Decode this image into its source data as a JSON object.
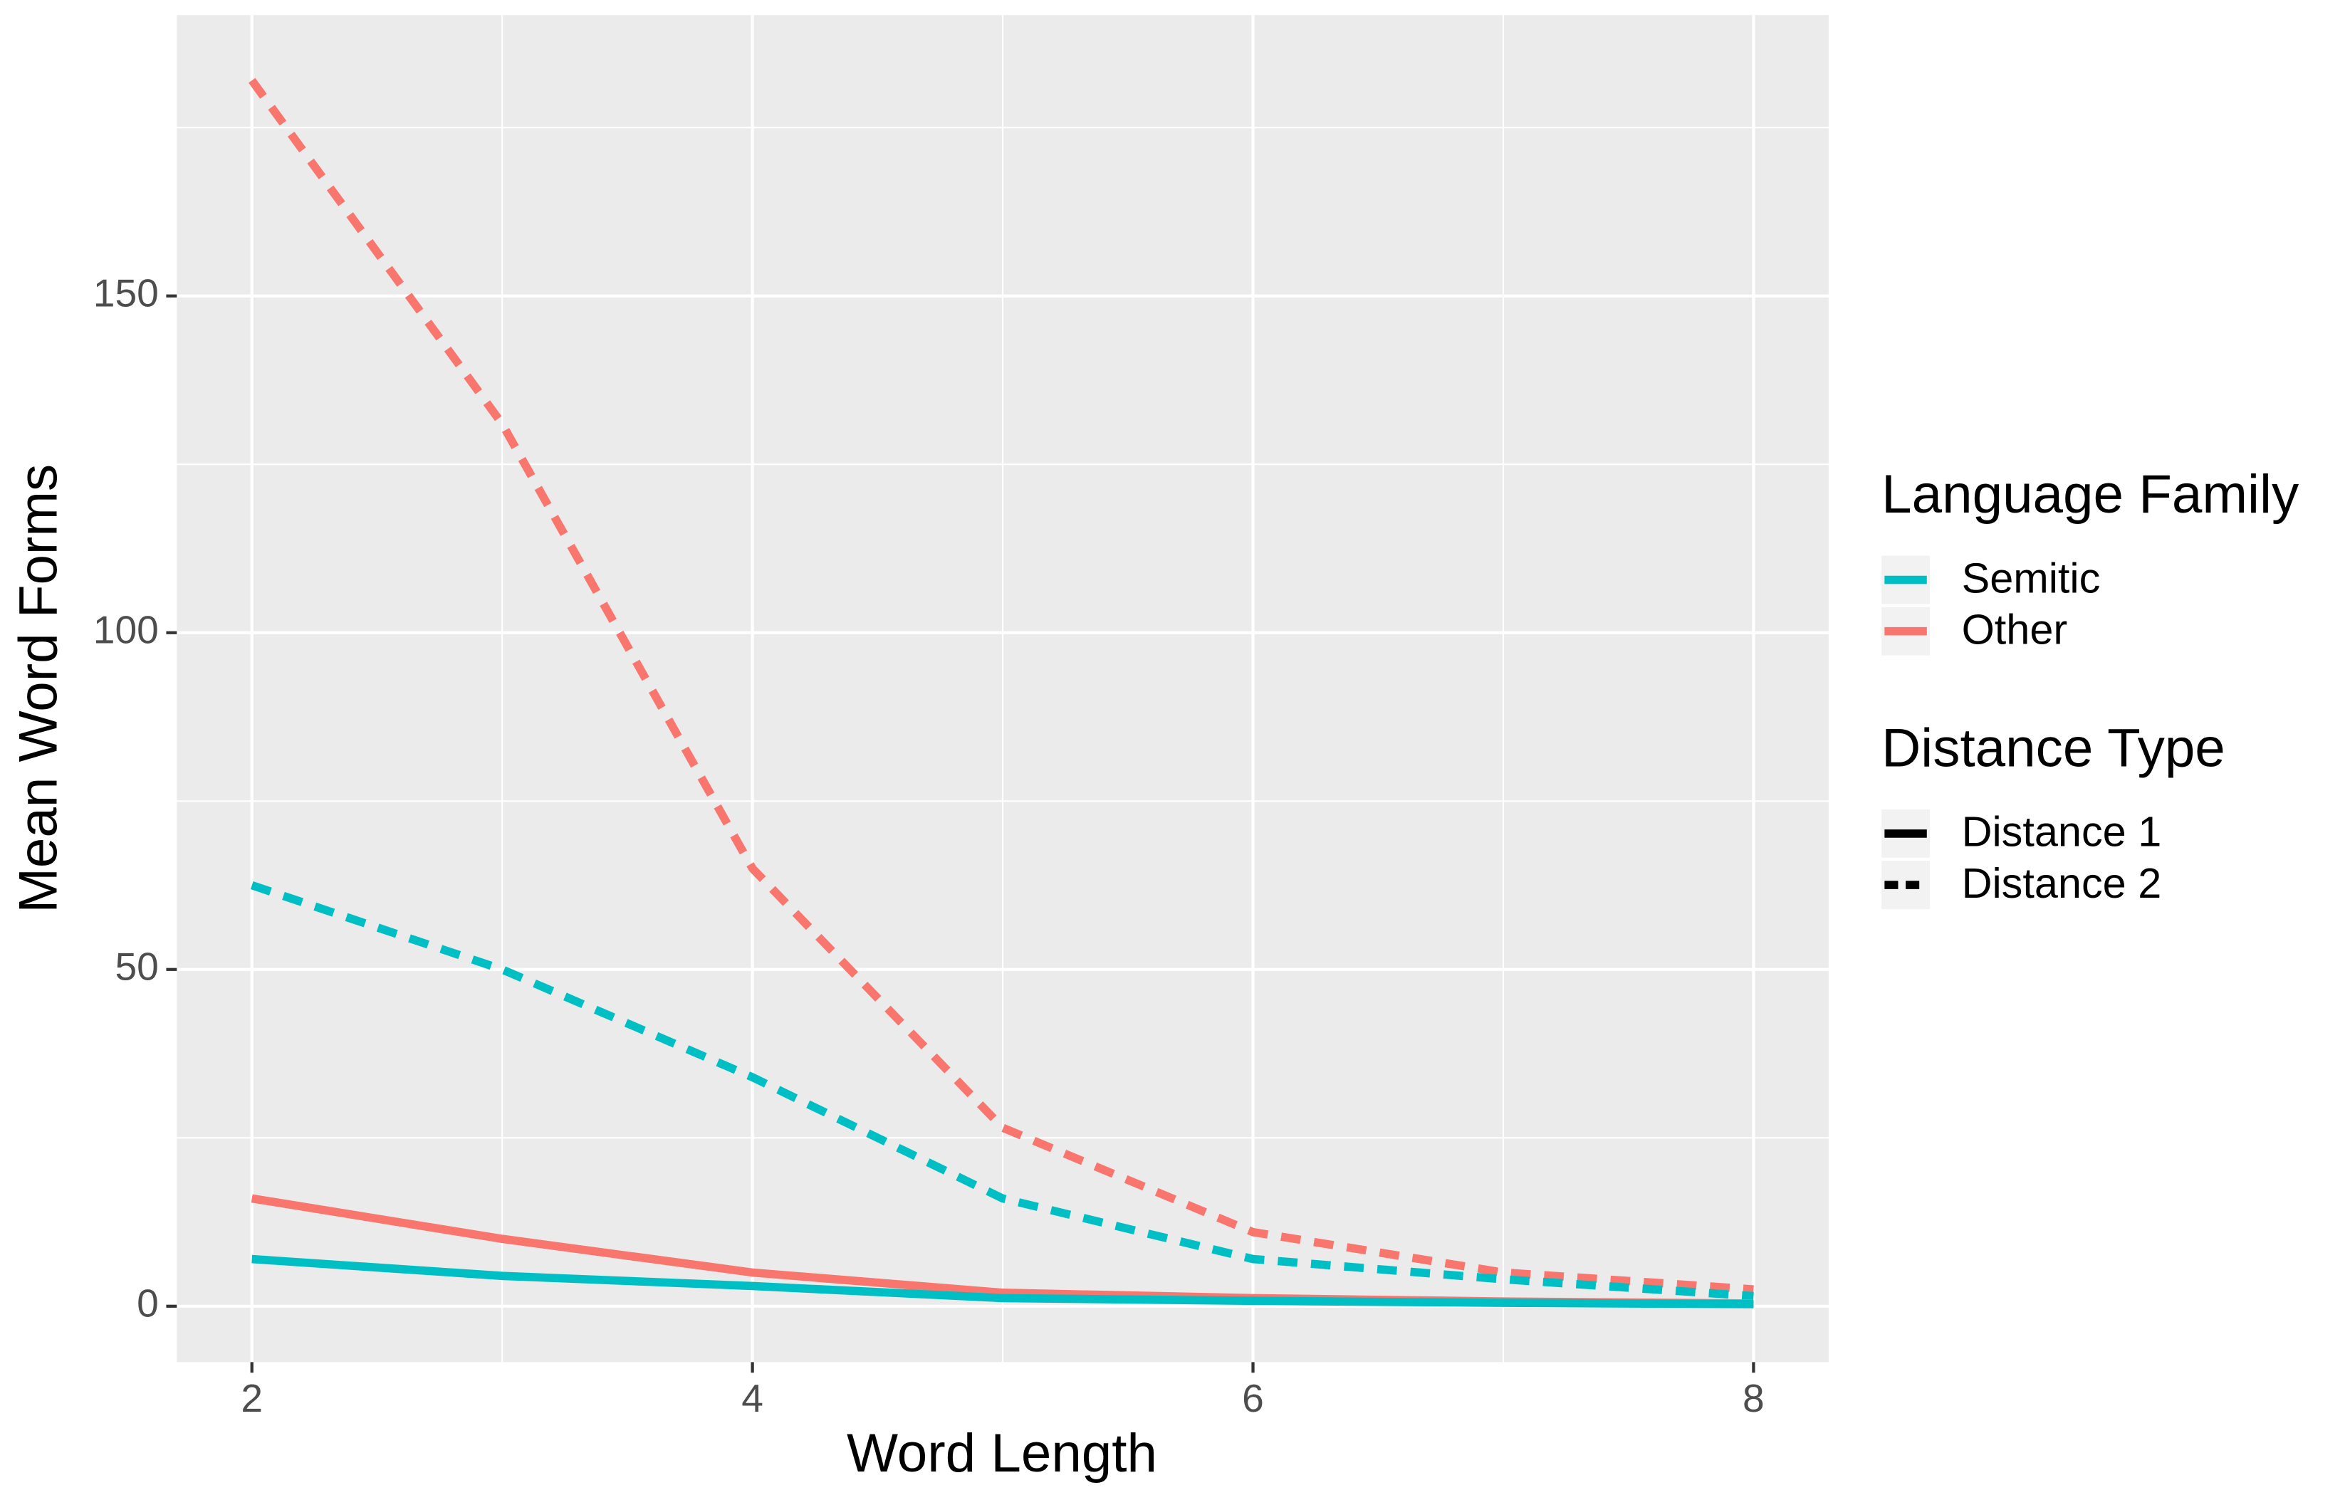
{
  "chart_data": {
    "type": "line",
    "x_label": "Word Length",
    "y_label": "Mean Word Forms",
    "x": [
      2,
      3,
      4,
      5,
      6,
      7,
      8
    ],
    "xlim": [
      1.7,
      8.3
    ],
    "xticks": [
      2,
      4,
      6,
      8
    ],
    "xminor": [
      3,
      5,
      7
    ],
    "ylim": [
      -8.3,
      191.7
    ],
    "yticks": [
      0,
      50,
      100,
      150
    ],
    "yminor": [
      25,
      75,
      125,
      175
    ],
    "grid": true,
    "series": [
      {
        "color": "#F8766D",
        "linetype": "dashed",
        "values": [
          182,
          131,
          65,
          26.5,
          11,
          5,
          2.5
        ]
      },
      {
        "color": "#00BFC4",
        "linetype": "dashed",
        "values": [
          62.5,
          50,
          34,
          16,
          7,
          4,
          1.5
        ]
      },
      {
        "color": "#F8766D",
        "linetype": "solid",
        "values": [
          16,
          10,
          5,
          2,
          1.2,
          0.7,
          0.4
        ]
      },
      {
        "color": "#00BFC4",
        "linetype": "solid",
        "values": [
          7,
          4.5,
          3,
          1.2,
          0.8,
          0.5,
          0.3
        ]
      }
    ],
    "legends": [
      {
        "title": "Language Family",
        "items": [
          {
            "label": "Semitic",
            "color": "#00BFC4",
            "linetype": "solid"
          },
          {
            "label": "Other",
            "color": "#F8766D",
            "linetype": "solid"
          }
        ]
      },
      {
        "title": "Distance Type",
        "items": [
          {
            "label": "Distance 1",
            "color": "#000000",
            "linetype": "solid"
          },
          {
            "label": "Distance 2",
            "color": "#000000",
            "linetype": "dashed"
          }
        ]
      }
    ]
  }
}
